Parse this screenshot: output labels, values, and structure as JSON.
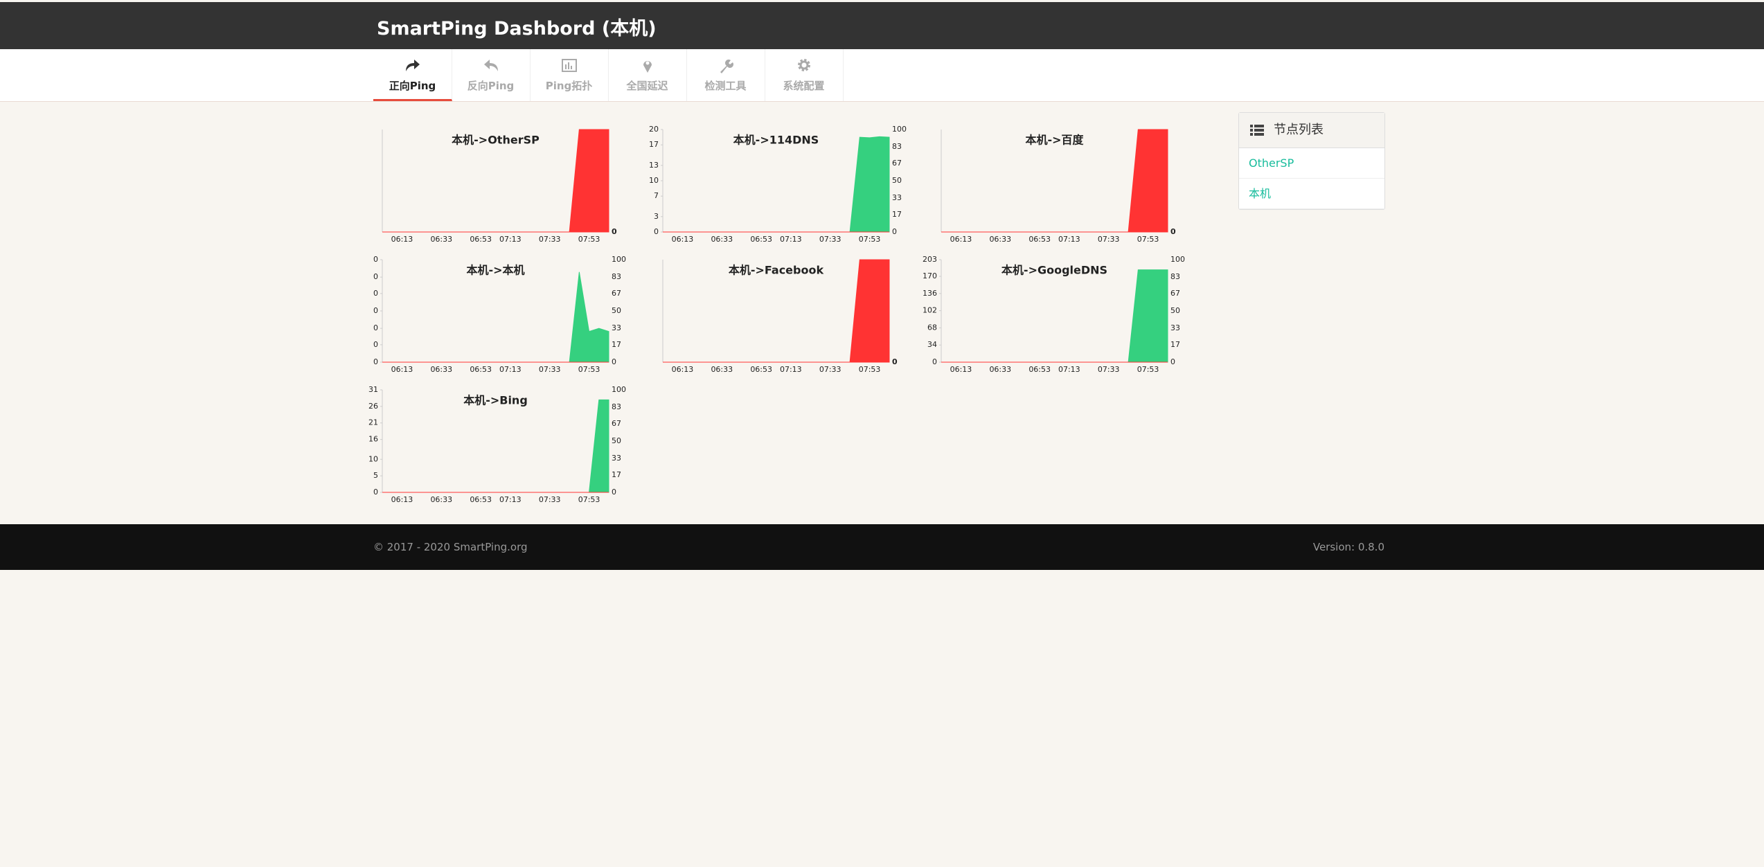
{
  "header": {
    "title": "SmartPing Dashbord (本机)"
  },
  "nav": {
    "tabs": [
      "正向Ping",
      "反向Ping",
      "Ping拓扑",
      "全国延迟",
      "检测工具",
      "系统配置"
    ],
    "active": 0
  },
  "chart_data": [
    {
      "type": "area",
      "title": "本机->OtherSP",
      "categories": [
        null,
        null,
        "06:13",
        null,
        null,
        null,
        "06:33",
        null,
        null,
        null,
        "06:53",
        null,
        null,
        "07:13",
        null,
        null,
        null,
        "07:33",
        null,
        null,
        null,
        "07:53",
        null,
        null
      ],
      "ylim": [
        0,
        1
      ],
      "yticks": [],
      "y2lim": [
        0,
        100
      ],
      "y2ticks": [
        0
      ],
      "series": [
        {
          "color": "#ff3333",
          "axis": "y2",
          "values": [
            0,
            0,
            0,
            0,
            0,
            0,
            0,
            0,
            0,
            0,
            0,
            0,
            0,
            0,
            0,
            0,
            0,
            0,
            0,
            0,
            100,
            100,
            100,
            100
          ]
        }
      ]
    },
    {
      "type": "area",
      "title": "本机->114DNS",
      "categories": [
        null,
        null,
        "06:13",
        null,
        null,
        null,
        "06:33",
        null,
        null,
        null,
        "06:53",
        null,
        null,
        "07:13",
        null,
        null,
        null,
        "07:33",
        null,
        null,
        null,
        "07:53",
        null,
        null
      ],
      "ylim": [
        0,
        20
      ],
      "yticks": [
        0,
        3,
        7,
        10,
        13,
        17,
        20
      ],
      "y2lim": [
        0,
        100
      ],
      "y2ticks": [
        0,
        17,
        33,
        50,
        67,
        83,
        100
      ],
      "series": [
        {
          "color": "#35d07f",
          "values": [
            0,
            0,
            0,
            0,
            0,
            0,
            0,
            0,
            0,
            0,
            0,
            0,
            0,
            0,
            0,
            0,
            0,
            0,
            0,
            0,
            18.5,
            18.4,
            18.6,
            18.5
          ]
        },
        {
          "color": "#ff3333",
          "axis": "y2",
          "values": [
            0,
            0,
            0,
            0,
            0,
            0,
            0,
            0,
            0,
            0,
            0,
            0,
            0,
            0,
            0,
            0,
            0,
            0,
            0,
            0,
            0,
            0,
            0,
            0
          ]
        }
      ]
    },
    {
      "type": "area",
      "title": "本机->百度",
      "categories": [
        null,
        null,
        "06:13",
        null,
        null,
        null,
        "06:33",
        null,
        null,
        null,
        "06:53",
        null,
        null,
        "07:13",
        null,
        null,
        null,
        "07:33",
        null,
        null,
        null,
        "07:53",
        null,
        null
      ],
      "ylim": [
        0,
        1
      ],
      "yticks": [],
      "y2lim": [
        0,
        100
      ],
      "y2ticks": [
        0
      ],
      "series": [
        {
          "color": "#ff3333",
          "axis": "y2",
          "values": [
            0,
            0,
            0,
            0,
            0,
            0,
            0,
            0,
            0,
            0,
            0,
            0,
            0,
            0,
            0,
            0,
            0,
            0,
            0,
            0,
            100,
            100,
            100,
            100
          ]
        }
      ]
    },
    {
      "type": "area",
      "title": "本机->本机",
      "categories": [
        null,
        null,
        "06:13",
        null,
        null,
        null,
        "06:33",
        null,
        null,
        null,
        "06:53",
        null,
        null,
        "07:13",
        null,
        null,
        null,
        "07:33",
        null,
        null,
        null,
        "07:53",
        null,
        null
      ],
      "ylim": [
        0,
        1
      ],
      "yticks": [
        0,
        {
          "value": 0.17,
          "label": "0"
        },
        {
          "value": 0.33,
          "label": "0"
        },
        {
          "value": 0.5,
          "label": "0"
        },
        {
          "value": 0.67,
          "label": "0"
        },
        {
          "value": 0.83,
          "label": "0"
        },
        {
          "value": 1,
          "label": "0"
        }
      ],
      "y2lim": [
        0,
        100
      ],
      "y2ticks": [
        0,
        17,
        33,
        50,
        67,
        83,
        100
      ],
      "series": [
        {
          "color": "#35d07f",
          "values": [
            0,
            0,
            0,
            0,
            0,
            0,
            0,
            0,
            0,
            0,
            0,
            0,
            0,
            0,
            0,
            0,
            0,
            0,
            0,
            0,
            0.88,
            0.3,
            0.33,
            0.3
          ]
        },
        {
          "color": "#ff3333",
          "axis": "y2",
          "values": [
            0,
            0,
            0,
            0,
            0,
            0,
            0,
            0,
            0,
            0,
            0,
            0,
            0,
            0,
            0,
            0,
            0,
            0,
            0,
            0,
            0,
            0,
            0,
            0
          ]
        }
      ]
    },
    {
      "type": "area",
      "title": "本机->Facebook",
      "categories": [
        null,
        null,
        "06:13",
        null,
        null,
        null,
        "06:33",
        null,
        null,
        null,
        "06:53",
        null,
        null,
        "07:13",
        null,
        null,
        null,
        "07:33",
        null,
        null,
        null,
        "07:53",
        null,
        null
      ],
      "ylim": [
        0,
        1
      ],
      "yticks": [],
      "y2lim": [
        0,
        100
      ],
      "y2ticks": [
        0
      ],
      "series": [
        {
          "color": "#ff3333",
          "axis": "y2",
          "values": [
            0,
            0,
            0,
            0,
            0,
            0,
            0,
            0,
            0,
            0,
            0,
            0,
            0,
            0,
            0,
            0,
            0,
            0,
            0,
            0,
            100,
            100,
            100,
            100
          ]
        }
      ]
    },
    {
      "type": "area",
      "title": "本机->GoogleDNS",
      "categories": [
        null,
        null,
        "06:13",
        null,
        null,
        null,
        "06:33",
        null,
        null,
        null,
        "06:53",
        null,
        null,
        "07:13",
        null,
        null,
        null,
        "07:33",
        null,
        null,
        null,
        "07:53",
        null,
        null
      ],
      "ylim": [
        0,
        203
      ],
      "yticks": [
        0,
        34,
        68,
        102,
        136,
        170,
        203
      ],
      "y2lim": [
        0,
        100
      ],
      "y2ticks": [
        0,
        17,
        33,
        50,
        67,
        83,
        100
      ],
      "series": [
        {
          "color": "#35d07f",
          "values": [
            0,
            0,
            0,
            0,
            0,
            0,
            0,
            0,
            0,
            0,
            0,
            0,
            0,
            0,
            0,
            0,
            0,
            0,
            0,
            0,
            183,
            183,
            183,
            183
          ]
        },
        {
          "color": "#ff3333",
          "axis": "y2",
          "values": [
            0,
            0,
            0,
            0,
            0,
            0,
            0,
            0,
            0,
            0,
            0,
            0,
            0,
            0,
            0,
            0,
            0,
            0,
            0,
            0,
            0,
            0,
            0,
            0
          ]
        }
      ]
    },
    {
      "type": "area",
      "title": "本机->Bing",
      "categories": [
        null,
        null,
        "06:13",
        null,
        null,
        null,
        "06:33",
        null,
        null,
        null,
        "06:53",
        null,
        null,
        "07:13",
        null,
        null,
        null,
        "07:33",
        null,
        null,
        null,
        "07:53",
        null,
        null
      ],
      "ylim": [
        0,
        31
      ],
      "yticks": [
        0,
        5,
        10,
        16,
        21,
        26,
        31
      ],
      "y2lim": [
        0,
        100
      ],
      "y2ticks": [
        0,
        17,
        33,
        50,
        67,
        83,
        100
      ],
      "series": [
        {
          "color": "#35d07f",
          "values": [
            0,
            0,
            0,
            0,
            0,
            0,
            0,
            0,
            0,
            0,
            0,
            0,
            0,
            0,
            0,
            0,
            0,
            0,
            0,
            0,
            0,
            0,
            28,
            28
          ]
        },
        {
          "color": "#ff3333",
          "axis": "y2",
          "values": [
            0,
            0,
            0,
            0,
            0,
            0,
            0,
            0,
            0,
            0,
            0,
            0,
            0,
            0,
            0,
            0,
            0,
            0,
            0,
            0,
            0,
            0,
            0,
            0
          ]
        }
      ]
    }
  ],
  "sidebar": {
    "title": "节点列表",
    "items": [
      "OtherSP",
      "本机"
    ]
  },
  "footer": {
    "copyright": "© 2017 - 2020 SmartPing.org",
    "version": "Version: 0.8.0"
  }
}
